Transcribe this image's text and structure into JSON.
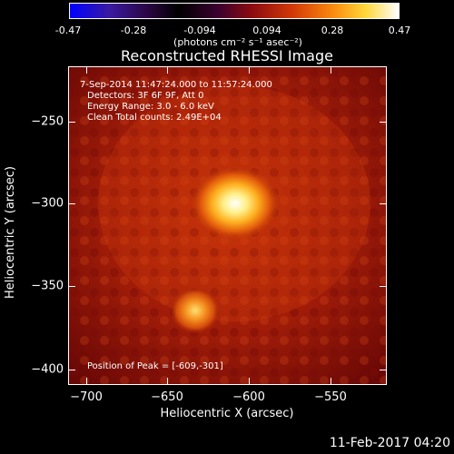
{
  "colorbar": {
    "ticks": [
      "-0.47",
      "-0.28",
      "-0.094",
      "0.094",
      "0.28",
      "0.47"
    ],
    "unit": "(photons cm⁻² s⁻¹ asec⁻²)"
  },
  "title": "Reconstructed RHESSI Image",
  "info": {
    "time": "7-Sep-2014 11:47:24.000 to 11:57:24.000",
    "detectors": "Detectors: 3F 6F 9F, Att 0",
    "energy": "Energy Range: 3.0 - 6.0 keV",
    "clean": "Clean     Total counts: 2.49E+04",
    "peak": "Position of Peak = [-609,-301]"
  },
  "axes": {
    "xlabel": "Heliocentric X (arcsec)",
    "ylabel": "Heliocentric Y (arcsec)",
    "xticks": [
      "−700",
      "−650",
      "−600",
      "−550"
    ],
    "yticks": [
      "−250",
      "−300",
      "−350",
      "−400"
    ]
  },
  "footer": {
    "date": "11-Feb-2017 04:20"
  },
  "colors": {
    "background": "#000000",
    "sources": "#ffffff"
  }
}
